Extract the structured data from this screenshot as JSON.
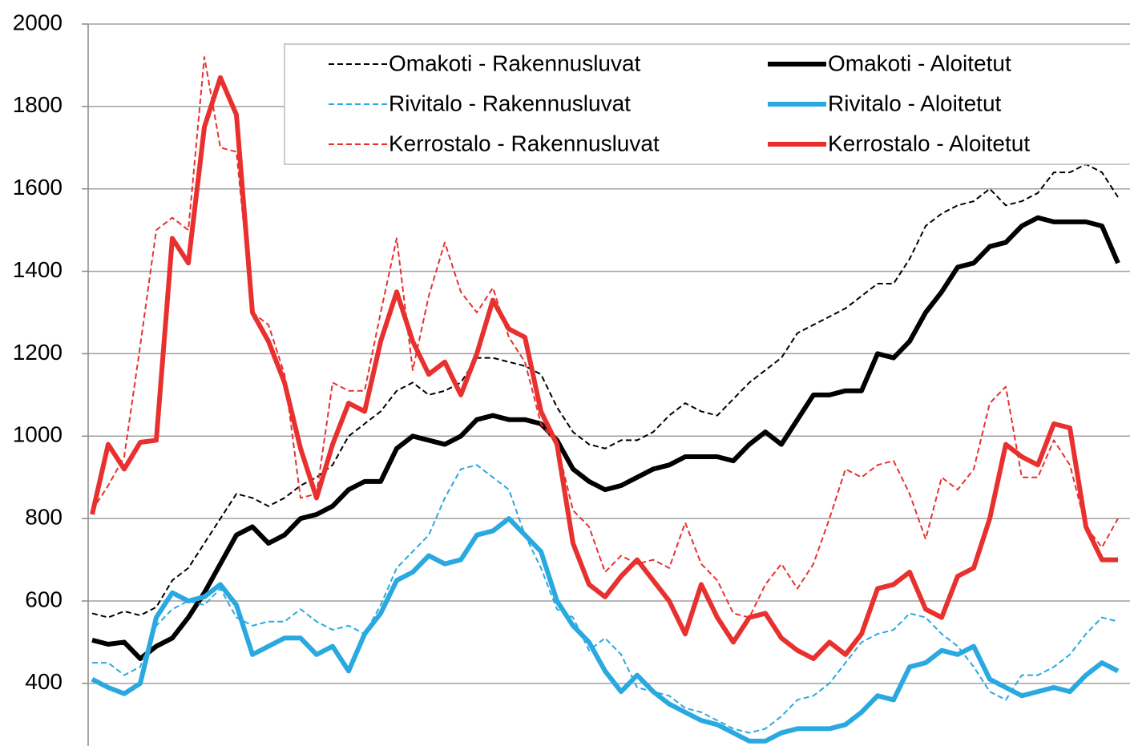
{
  "chart_data": {
    "type": "line",
    "categories": [
      null,
      null,
      null,
      null,
      null,
      null,
      null,
      null,
      null,
      null,
      null,
      null,
      null,
      null,
      null,
      null,
      null,
      null,
      null,
      null,
      null,
      null,
      null,
      null,
      null,
      null,
      null,
      null,
      null,
      null,
      null,
      null,
      null,
      null,
      null,
      null,
      null,
      null,
      null,
      null,
      null,
      null,
      null,
      null,
      null,
      null,
      null,
      null,
      null,
      null,
      null,
      null,
      null,
      null,
      null,
      null,
      null,
      null,
      null,
      null,
      null,
      null,
      null,
      null,
      null
    ],
    "ylim": [
      250,
      2000
    ],
    "yticks": [
      400,
      600,
      800,
      1000,
      1200,
      1400,
      1600,
      1800,
      2000
    ],
    "grid": true,
    "legend": "top-right",
    "series": [
      {
        "name": "Omakoti - Rakennusluvat",
        "color": "#000000",
        "dashed": true,
        "values": [
          570,
          560,
          575,
          565,
          585,
          650,
          680,
          740,
          800,
          860,
          850,
          830,
          850,
          880,
          900,
          930,
          1000,
          1030,
          1060,
          1110,
          1130,
          1100,
          1110,
          1130,
          1190,
          1190,
          1180,
          1170,
          1150,
          1070,
          1010,
          980,
          970,
          990,
          990,
          1010,
          1050,
          1080,
          1060,
          1050,
          1090,
          1130,
          1160,
          1190,
          1250,
          1270,
          1290,
          1310,
          1340,
          1370,
          1370,
          1430,
          1510,
          1540,
          1560,
          1570,
          1600,
          1560,
          1570,
          1590,
          1640,
          1640,
          1660,
          1640,
          1580
        ]
      },
      {
        "name": "Omakoti - Aloitetut",
        "color": "#000000",
        "dashed": false,
        "values": [
          505,
          495,
          500,
          460,
          490,
          510,
          560,
          620,
          690,
          760,
          780,
          740,
          760,
          800,
          810,
          830,
          870,
          890,
          890,
          970,
          1000,
          990,
          980,
          1000,
          1040,
          1050,
          1040,
          1040,
          1030,
          990,
          920,
          890,
          870,
          880,
          900,
          920,
          930,
          950,
          950,
          950,
          940,
          980,
          1010,
          980,
          1040,
          1100,
          1100,
          1110,
          1110,
          1200,
          1190,
          1230,
          1300,
          1350,
          1410,
          1420,
          1460,
          1470,
          1510,
          1530,
          1520,
          1520,
          1520,
          1510,
          1420
        ]
      },
      {
        "name": "Rivitalo - Rakennusluvat",
        "color": "#29a9e0",
        "dashed": true,
        "values": [
          450,
          450,
          420,
          440,
          540,
          580,
          600,
          590,
          630,
          560,
          540,
          550,
          550,
          580,
          550,
          530,
          540,
          520,
          590,
          680,
          720,
          760,
          850,
          920,
          930,
          900,
          870,
          760,
          680,
          580,
          560,
          480,
          510,
          470,
          390,
          380,
          370,
          340,
          330,
          310,
          290,
          280,
          290,
          320,
          360,
          370,
          400,
          450,
          500,
          520,
          530,
          570,
          560,
          520,
          490,
          440,
          380,
          360,
          420,
          420,
          440,
          470,
          520,
          560,
          550
        ]
      },
      {
        "name": "Rivitalo - Aloitetut",
        "color": "#29a9e0",
        "dashed": false,
        "values": [
          410,
          390,
          375,
          400,
          560,
          620,
          600,
          610,
          640,
          590,
          470,
          490,
          510,
          510,
          470,
          490,
          430,
          520,
          570,
          650,
          670,
          710,
          690,
          700,
          760,
          770,
          800,
          760,
          720,
          600,
          540,
          500,
          430,
          380,
          420,
          380,
          350,
          330,
          310,
          300,
          280,
          260,
          260,
          280,
          290,
          290,
          290,
          300,
          330,
          370,
          360,
          440,
          450,
          480,
          470,
          490,
          410,
          390,
          370,
          380,
          390,
          380,
          420,
          450,
          430
        ]
      },
      {
        "name": "Kerrostalo - Rakennusluvat",
        "color": "#e8312f",
        "dashed": true,
        "values": [
          820,
          880,
          950,
          1220,
          1500,
          1530,
          1500,
          1920,
          1700,
          1690,
          1300,
          1270,
          1150,
          850,
          860,
          1130,
          1110,
          1110,
          1300,
          1480,
          1160,
          1340,
          1470,
          1350,
          1300,
          1360,
          1240,
          1180,
          1030,
          980,
          820,
          780,
          670,
          710,
          690,
          700,
          680,
          790,
          690,
          650,
          570,
          560,
          640,
          690,
          630,
          690,
          800,
          920,
          900,
          930,
          940,
          860,
          750,
          900,
          870,
          920,
          1080,
          1120,
          900,
          900,
          990,
          930,
          780,
          730,
          800
        ]
      },
      {
        "name": "Kerrostalo - Aloitetut",
        "color": "#e8312f",
        "dashed": false,
        "values": [
          810,
          980,
          920,
          985,
          990,
          1480,
          1420,
          1750,
          1870,
          1780,
          1300,
          1230,
          1130,
          970,
          850,
          980,
          1080,
          1060,
          1230,
          1350,
          1230,
          1150,
          1180,
          1100,
          1200,
          1330,
          1260,
          1240,
          1060,
          980,
          740,
          640,
          610,
          660,
          700,
          650,
          600,
          520,
          640,
          560,
          500,
          560,
          570,
          510,
          480,
          460,
          500,
          470,
          520,
          630,
          640,
          670,
          580,
          560,
          660,
          680,
          800,
          980,
          950,
          930,
          1030,
          1020,
          780,
          700,
          700
        ]
      }
    ]
  }
}
